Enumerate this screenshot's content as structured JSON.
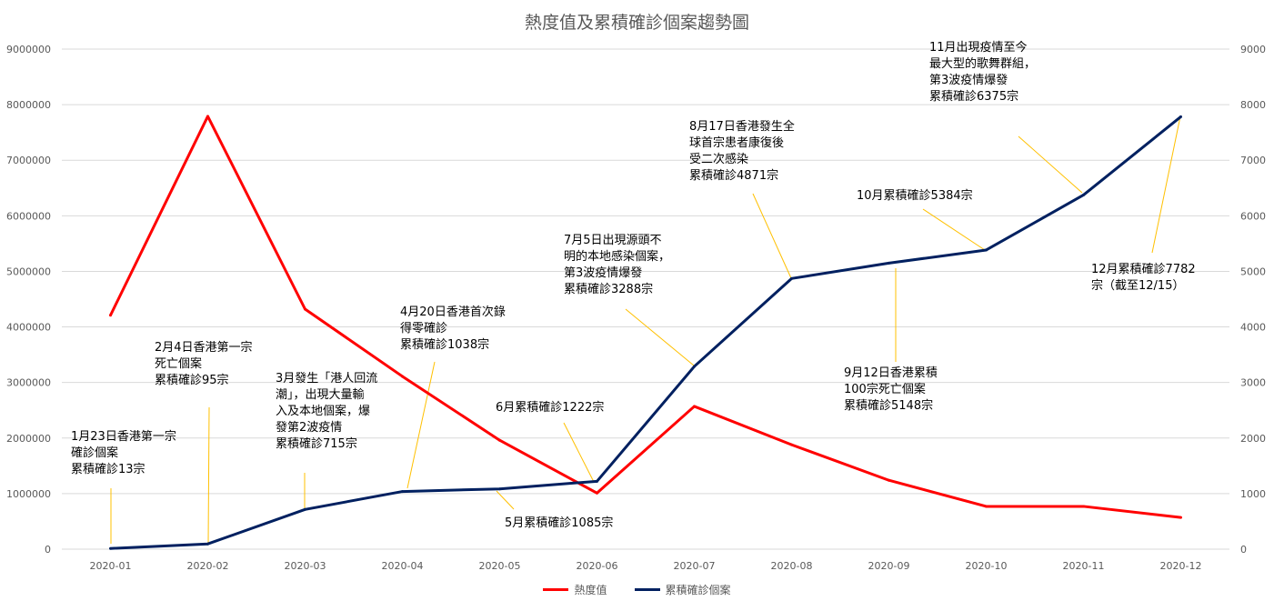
{
  "chart_data": {
    "type": "line",
    "title": "熱度值及累積確診個案趨勢圖",
    "categories": [
      "2020-01",
      "2020-02",
      "2020-03",
      "2020-04",
      "2020-05",
      "2020-06",
      "2020-07",
      "2020-08",
      "2020-09",
      "2020-10",
      "2020-11",
      "2020-12"
    ],
    "series": [
      {
        "name": "熱度值",
        "axis": "left",
        "color": "#ff0000",
        "values": [
          4210000,
          7790000,
          4320000,
          3110000,
          1960000,
          1010000,
          2570000,
          1880000,
          1240000,
          770000,
          770000,
          570000
        ]
      },
      {
        "name": "累積確診個案",
        "axis": "right",
        "color": "#002060",
        "values": [
          13,
          95,
          715,
          1038,
          1085,
          1222,
          3288,
          4871,
          5148,
          5384,
          6375,
          7782
        ]
      }
    ],
    "y_left": {
      "ylim": [
        0,
        9000000
      ],
      "ticks": [
        "0",
        "1000000",
        "2000000",
        "3000000",
        "4000000",
        "5000000",
        "6000000",
        "7000000",
        "8000000",
        "9000000"
      ]
    },
    "y_right": {
      "ylim": [
        0,
        9000
      ],
      "ticks": [
        "0",
        "1000",
        "2000",
        "3000",
        "4000",
        "5000",
        "6000",
        "7000",
        "8000",
        "9000"
      ]
    },
    "grid": true,
    "legend": "bottom",
    "annotations": [
      "1月23日香港第一宗\n確診個案\n累積確診13宗",
      "2月4日香港第一宗\n死亡個案\n累積確診95宗",
      "3月發生「港人回流\n潮」，出現大量輸\n入及本地個案，爆\n發第2波疫情\n累積確診715宗",
      "4月20日香港首次錄\n得零確診\n累積確診1038宗",
      "5月累積確診1085宗",
      "6月累積確診1222宗",
      "7月5日出現源頭不\n明的本地感染個案，\n第3波疫情爆發\n累積確診3288宗",
      "8月17日香港發生全\n球首宗患者康復後\n受二次感染\n累積確診4871宗",
      "9月12日香港累積\n100宗死亡個案\n累積確診5148宗",
      "10月累積確診5384宗",
      "11月出現疫情至今\n最大型的歌舞群組，\n第3波疫情爆發\n累積確診6375宗",
      "12月累積確診7782\n宗（截至12/15）"
    ]
  }
}
